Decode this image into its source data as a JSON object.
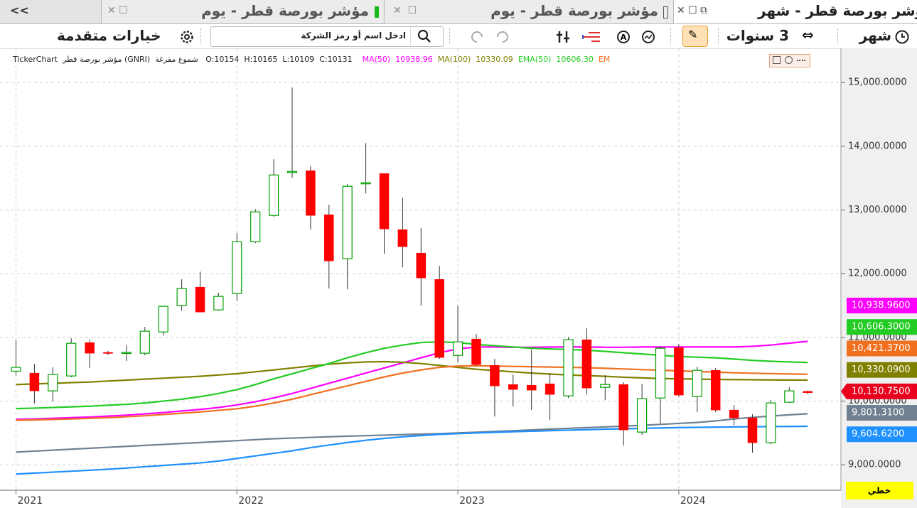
{
  "tabs": {
    "collapse": "<<",
    "items": [
      "مؤشر بورصة قطر - يوم",
      "مؤشر بورصة قطر - يوم",
      "مؤشر بورصة قطر - شهر"
    ]
  },
  "toolbar": {
    "period": "شهر",
    "range": "3 سنوات",
    "advanced": "خيارات متقدمة",
    "search_placeholder": "ادخل اسم أو رمز الشركة"
  },
  "info": {
    "source": "TickerChart",
    "symbol": "مؤشر بورصة قطر (GNRI)",
    "style": "شموع مفرغة",
    "ohlc": [
      "O:10154",
      "H:10165",
      "L:10109",
      "C:10131"
    ]
  },
  "scale_mode": "خطي",
  "chart_data": {
    "type": "candlestick",
    "categories": [
      "2021",
      null,
      null,
      null,
      null,
      null,
      null,
      null,
      null,
      null,
      null,
      null,
      "2022",
      null,
      null,
      null,
      null,
      null,
      null,
      null,
      null,
      null,
      null,
      null,
      "2023",
      null,
      null,
      null,
      null,
      null,
      null,
      null,
      null,
      null,
      null,
      null,
      "2024",
      null,
      null,
      null,
      null,
      null,
      null,
      null
    ],
    "open": [
      10470,
      10440,
      10161,
      10395,
      10919,
      10765,
      10752,
      10752,
      11086,
      11500,
      11789,
      11432,
      11689,
      12502,
      12915,
      13590,
      13617,
      12926,
      12235,
      13417,
      13573,
      12692,
      12324,
      11911,
      10718,
      10975,
      10562,
      10261,
      10250,
      10272,
      10083,
      10964,
      10216,
      10261,
      9514,
      10049,
      10842,
      10072,
      10484,
      9860,
      9737,
      9347,
      9983,
      10154
    ],
    "high": [
      10960,
      10585,
      10530,
      10986,
      10964,
      10790,
      10875,
      11165,
      11500,
      11912,
      12034,
      11700,
      12636,
      13015,
      13796,
      14922,
      13684,
      13082,
      13406,
      14052,
      13573,
      13194,
      12715,
      12123,
      11499,
      11053,
      10663,
      10417,
      10808,
      10440,
      11008,
      11142,
      10406,
      10295,
      10272,
      10863,
      10897,
      10540,
      10518,
      9938,
      9793,
      10016,
      10217,
      10165
    ],
    "low": [
      10400,
      9960,
      9994,
      10373,
      10518,
      10720,
      10630,
      10718,
      11030,
      11420,
      11398,
      11420,
      11577,
      12480,
      12893,
      13506,
      12692,
      11767,
      11755,
      13261,
      12313,
      12101,
      11499,
      10663,
      10607,
      10551,
      9759,
      9915,
      9860,
      9704,
      10049,
      10105,
      10016,
      9302,
      9470,
      9648,
      10072,
      9826,
      9826,
      9626,
      9191,
      9325,
      9971,
      10109
    ],
    "close": [
      10530,
      10161,
      10418,
      10908,
      10752,
      10750,
      10765,
      11098,
      11488,
      11767,
      11398,
      11644,
      12502,
      12971,
      13550,
      13606,
      12915,
      12201,
      13372,
      13428,
      12703,
      12424,
      11934,
      10685,
      10930,
      10573,
      10239,
      10183,
      10172,
      10105,
      10964,
      10205,
      10261,
      9548,
      10038,
      10830,
      10094,
      10484,
      9860,
      9737,
      9347,
      9971,
      10161,
      10131
    ],
    "up_color": "#00a000",
    "down_color": "#ff0000",
    "last_price": {
      "value": 10130.75,
      "label": "10,130.7500"
    },
    "last_price_color": "#e8001c",
    "series": [
      {
        "name": "MA(50)",
        "legend_value": "10938.96",
        "color": "#ff00ff",
        "tag": {
          "value": 10938.96,
          "label": "10,938.9600"
        },
        "values": [
          9715,
          9720,
          9730,
          9740,
          9750,
          9765,
          9780,
          9800,
          9820,
          9845,
          9870,
          9900,
          9940,
          9990,
          10050,
          10120,
          10200,
          10280,
          10360,
          10440,
          10520,
          10600,
          10680,
          10760,
          10820,
          10850,
          10850,
          10845,
          10845,
          10850,
          10850,
          10850,
          10845,
          10845,
          10850,
          10850,
          10850,
          10850,
          10850,
          10850,
          10860,
          10880,
          10910,
          10938.96
        ]
      },
      {
        "name": "MA(100)",
        "legend_value": "10330.09",
        "color": "#808000",
        "tag": {
          "value": 10330.09,
          "label": "10,330.0900"
        },
        "values": [
          10260,
          10270,
          10280,
          10290,
          10300,
          10315,
          10330,
          10345,
          10360,
          10375,
          10390,
          10410,
          10430,
          10460,
          10490,
          10520,
          10550,
          10580,
          10600,
          10615,
          10620,
          10610,
          10590,
          10560,
          10530,
          10500,
          10480,
          10460,
          10440,
          10425,
          10410,
          10400,
          10390,
          10375,
          10365,
          10355,
          10350,
          10345,
          10340,
          10338,
          10335,
          10333,
          10331,
          10330.09
        ]
      },
      {
        "name": "EMA(50)",
        "legend_value": "10606.30",
        "color": "#22cc22",
        "tag": {
          "value": 10606.3,
          "label": "10,606.3000"
        },
        "values": [
          9882,
          9890,
          9900,
          9910,
          9920,
          9935,
          9950,
          9970,
          10000,
          10030,
          10070,
          10120,
          10180,
          10260,
          10350,
          10430,
          10510,
          10590,
          10680,
          10760,
          10830,
          10880,
          10920,
          10930,
          10920,
          10890,
          10870,
          10850,
          10830,
          10820,
          10810,
          10800,
          10780,
          10760,
          10740,
          10720,
          10700,
          10690,
          10680,
          10660,
          10640,
          10625,
          10615,
          10606.3
        ]
      },
      {
        "name": "EM",
        "color": "#f07020",
        "tag": {
          "value": 10421.37,
          "label": "10,421.3700"
        },
        "values": [
          9700,
          9705,
          9712,
          9720,
          9730,
          9740,
          9755,
          9770,
          9790,
          9810,
          9830,
          9855,
          9880,
          9920,
          9970,
          10030,
          10100,
          10170,
          10240,
          10310,
          10380,
          10440,
          10490,
          10530,
          10550,
          10555,
          10550,
          10545,
          10540,
          10535,
          10530,
          10525,
          10515,
          10505,
          10495,
          10485,
          10475,
          10465,
          10455,
          10445,
          10438,
          10432,
          10426,
          10421.37
        ]
      },
      {
        "color": "#708090",
        "tag": {
          "value": 9801.31,
          "label": "9,801.3100"
        },
        "values": [
          9200,
          9215,
          9230,
          9245,
          9260,
          9275,
          9290,
          9305,
          9320,
          9335,
          9350,
          9365,
          9380,
          9395,
          9410,
          9420,
          9430,
          9440,
          9450,
          9458,
          9466,
          9474,
          9482,
          9490,
          9500,
          9512,
          9524,
          9536,
          9548,
          9560,
          9572,
          9584,
          9596,
          9608,
          9620,
          9635,
          9650,
          9665,
          9690,
          9720,
          9745,
          9765,
          9785,
          9801.31
        ]
      },
      {
        "color": "#1e90ff",
        "tag": {
          "value": 9604.62,
          "label": "9,604.6200"
        },
        "values": [
          8855,
          8870,
          8885,
          8900,
          8915,
          8930,
          8950,
          8970,
          8990,
          9010,
          9030,
          9060,
          9100,
          9140,
          9180,
          9220,
          9270,
          9310,
          9350,
          9385,
          9415,
          9440,
          9460,
          9478,
          9490,
          9500,
          9510,
          9520,
          9528,
          9536,
          9544,
          9552,
          9560,
          9566,
          9572,
          9578,
          9584,
          9588,
          9592,
          9595,
          9598,
          9600,
          9602,
          9604.62
        ]
      }
    ],
    "ylim": [
      8590,
      15460
    ],
    "yticks": [
      {
        "value": 9000,
        "label": "9,000.0000"
      },
      {
        "value": 10000,
        "label": "10,000.0000"
      },
      {
        "value": 11000,
        "label": "11,000.0000"
      },
      {
        "value": 12000,
        "label": "12,000.0000"
      },
      {
        "value": 13000,
        "label": "13,000.0000"
      },
      {
        "value": 14000,
        "label": "14,000.0000"
      },
      {
        "value": 15000,
        "label": "15,000.0000"
      }
    ],
    "grid": true
  }
}
